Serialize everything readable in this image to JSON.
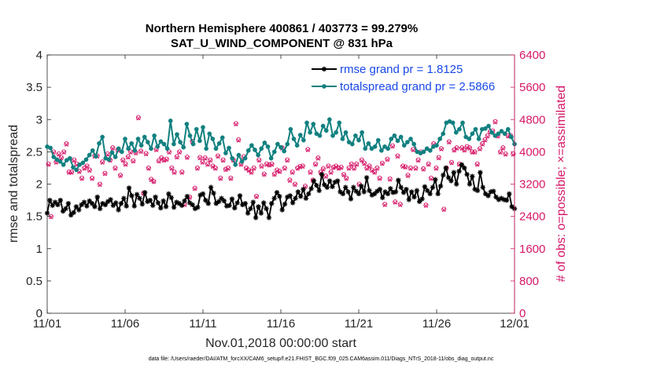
{
  "chart_data": {
    "type": "line",
    "title_line1": "Northern Hemisphere 400861 / 403773 = 99.279%",
    "title_line2": "SAT_U_WIND_COMPONENT @ 831 hPa",
    "xlabel": "Nov.01,2018 00:00:00 start",
    "ylabel_left": "rmse and totalspread",
    "ylabel_right": "# of obs: o=possible; ×=assimilated",
    "footnote": "data file: /Users/raeder/DAI/ATM_forcXX/CAM6_setup/f.e21.FHIST_BGC.f09_025.CAM6assim.011/Diags_NTrS_2018-11/obs_diag_output.nc",
    "xlim": [
      0,
      30
    ],
    "ylim_left": [
      0,
      4
    ],
    "ylim_right": [
      0,
      6400
    ],
    "x_ticks": [
      0,
      5,
      10,
      15,
      20,
      25,
      30
    ],
    "x_tick_labels": [
      "11/01",
      "11/06",
      "11/11",
      "11/16",
      "11/21",
      "11/26",
      "12/01"
    ],
    "y_left_ticks": [
      0,
      0.5,
      1,
      1.5,
      2,
      2.5,
      3,
      3.5,
      4
    ],
    "y_left_tick_labels": [
      "0",
      "0.5",
      "1",
      "1.5",
      "2",
      "2.5",
      "3",
      "3.5",
      "4"
    ],
    "y_right_ticks": [
      0,
      800,
      1600,
      2400,
      3200,
      4000,
      4800,
      5600,
      6400
    ],
    "y_right_tick_labels": [
      "0",
      "800",
      "1600",
      "2400",
      "3200",
      "4000",
      "4800",
      "5600",
      "6400"
    ],
    "legend": [
      {
        "label": "rmse grand pr = 1.8125",
        "color": "#000000"
      },
      {
        "label": "totalspread grand pr = 2.5866",
        "color": "#138080"
      }
    ],
    "series": [
      {
        "name": "rmse",
        "color": "#000000",
        "values": [
          1.55,
          1.75,
          1.67,
          1.72,
          1.68,
          1.75,
          1.58,
          1.62,
          1.7,
          1.52,
          1.56,
          1.65,
          1.6,
          1.68,
          1.72,
          1.66,
          1.74,
          1.7,
          1.65,
          1.8,
          1.62,
          1.7,
          1.68,
          1.73,
          1.76,
          1.67,
          1.71,
          1.6,
          1.7,
          1.78,
          1.66,
          1.94,
          1.82,
          1.66,
          1.84,
          1.78,
          1.69,
          1.87,
          1.73,
          1.75,
          1.67,
          1.8,
          1.71,
          1.63,
          1.74,
          1.65,
          1.85,
          1.79,
          1.64,
          1.72,
          1.7,
          1.67,
          1.74,
          1.81,
          1.71,
          1.68,
          1.62,
          1.64,
          1.83,
          1.85,
          1.75,
          1.7,
          1.95,
          1.86,
          1.7,
          1.73,
          1.78,
          1.74,
          1.66,
          1.67,
          1.77,
          1.63,
          1.71,
          1.82,
          1.68,
          1.7,
          1.55,
          1.62,
          1.72,
          1.48,
          1.65,
          1.55,
          1.71,
          1.62,
          1.48,
          1.7,
          1.78,
          1.87,
          1.81,
          1.6,
          1.69,
          1.8,
          1.82,
          1.71,
          1.78,
          1.88,
          1.81,
          1.92,
          1.78,
          1.85,
          1.93,
          2.05,
          1.98,
          1.9,
          2.15,
          1.99,
          1.95,
          2.05,
          1.96,
          2.03,
          2.05,
          1.88,
          1.85,
          1.95,
          1.88,
          1.77,
          1.95,
          1.89,
          1.85,
          1.97,
          1.88,
          2.1,
          1.9,
          1.83,
          1.85,
          1.89,
          1.92,
          1.79,
          1.88,
          1.85,
          1.93,
          1.87,
          1.88,
          2.06,
          1.95,
          1.87,
          1.92,
          1.76,
          1.88,
          1.8,
          1.9,
          1.73,
          1.77,
          1.96,
          1.9,
          1.85,
          1.95,
          2.07,
          1.85,
          1.97,
          2.14,
          2.25,
          2.1,
          2.05,
          2.18,
          2.0,
          2.2,
          2.3,
          2.25,
          2.15,
          2.0,
          2.12,
          1.92,
          1.9,
          2.18,
          1.95,
          1.85,
          1.82,
          1.88,
          1.89,
          1.8,
          1.76,
          1.78,
          1.76,
          1.75,
          1.85,
          1.65,
          1.62
        ]
      },
      {
        "name": "totalspread",
        "color": "#138080",
        "values": [
          2.58,
          2.56,
          2.42,
          2.38,
          2.35,
          2.3,
          2.37,
          2.4,
          2.26,
          2.22,
          2.3,
          2.33,
          2.38,
          2.45,
          2.52,
          2.43,
          2.63,
          2.73,
          2.4,
          2.38,
          2.49,
          2.42,
          2.55,
          2.5,
          2.7,
          2.55,
          2.63,
          2.52,
          2.7,
          2.6,
          2.73,
          2.65,
          2.55,
          2.75,
          2.58,
          2.66,
          2.62,
          2.55,
          2.98,
          2.62,
          2.77,
          2.65,
          2.57,
          2.93,
          2.75,
          2.62,
          2.85,
          2.67,
          2.88,
          2.55,
          2.78,
          2.7,
          2.55,
          2.63,
          2.72,
          2.48,
          2.56,
          2.4,
          2.3,
          2.45,
          2.35,
          2.4,
          2.52,
          2.6,
          2.53,
          2.45,
          2.55,
          2.64,
          2.58,
          2.4,
          2.5,
          2.62,
          2.57,
          2.51,
          2.62,
          2.85,
          2.7,
          2.6,
          2.76,
          2.68,
          2.95,
          2.8,
          2.93,
          2.78,
          2.75,
          2.9,
          2.83,
          3.0,
          2.75,
          2.8,
          2.95,
          2.7,
          2.8,
          2.65,
          2.62,
          2.75,
          2.68,
          2.8,
          2.55,
          2.63,
          2.55,
          2.58,
          2.68,
          2.52,
          2.58,
          2.55,
          2.7,
          2.75,
          2.67,
          2.73,
          2.6,
          2.65,
          2.7,
          2.62,
          2.5,
          2.48,
          2.5,
          2.55,
          2.52,
          2.58,
          2.6,
          2.7,
          2.78,
          2.95,
          2.97,
          2.95,
          2.8,
          2.85,
          2.95,
          2.73,
          2.7,
          2.78,
          2.85,
          2.7,
          2.85,
          2.86,
          2.9,
          2.8,
          2.75,
          2.78,
          2.82,
          2.78,
          2.85,
          2.73,
          2.62
        ]
      }
    ],
    "scatter_counts": [
      {
        "name": "possible",
        "marker": "o",
        "color": "#d61868",
        "values": [
          3700,
          2400,
          4000,
          3750,
          3950,
          3860,
          4000,
          4200,
          3500,
          3500,
          3800,
          3700,
          3520,
          3350,
          3600,
          3650,
          3550,
          3350,
          3900,
          3900,
          3200,
          3750,
          3470,
          3950,
          3800,
          4100,
          3600,
          4050,
          3420,
          3800,
          3700,
          3880,
          4000,
          3780,
          3980,
          4850,
          4020,
          2980,
          3960,
          3600,
          3320,
          3270,
          4060,
          3780,
          3850,
          3800,
          3820,
          4000,
          3600,
          3500,
          3880,
          4000,
          3500,
          2700,
          3870,
          2880,
          4260,
          3100,
          3600,
          3860,
          3750,
          3850,
          3700,
          3800,
          3650,
          3600,
          3900,
          3350,
          3800,
          3570,
          3600,
          3350,
          3800,
          4700,
          4300,
          3700,
          3880,
          3600,
          3550,
          3500,
          3600,
          2900,
          3800,
          3650,
          3450,
          3700,
          3680,
          3700,
          3450,
          3550,
          3520,
          4100,
          3600,
          3800,
          3300,
          3500,
          3200,
          3600,
          3640,
          3650,
          3150,
          4060,
          3500,
          3300,
          3700,
          3850,
          3500,
          3580,
          3400,
          3650,
          3500,
          3620,
          3650,
          3600,
          3620,
          3440,
          3350,
          3600,
          3700,
          3600,
          3700,
          3200,
          3800,
          3720,
          3600,
          3650,
          3550,
          3500,
          3600,
          3350,
          3720,
          2700,
          3820,
          3330,
          4150,
          2760,
          3900,
          2700,
          3650,
          3630,
          3420,
          3600,
          4060,
          3600,
          3800,
          4000,
          3580,
          2680,
          3700,
          3350,
          4200,
          3600,
          3860,
          4080,
          2580,
          3600,
          4250,
          3740,
          4050,
          4100,
          3700,
          4100,
          4050,
          4130,
          4100,
          4000,
          4000,
          3700,
          4080,
          4200,
          4300,
          4400,
          4500,
          4520,
          4750,
          4400,
          4000,
          4100,
          3950,
          4400,
          4400,
          3950
        ]
      },
      {
        "name": "assimilated",
        "marker": "x",
        "color": "#d61868",
        "values": [
          3680,
          2380,
          3980,
          3730,
          3930,
          3840,
          3980,
          4180,
          3480,
          3480,
          3780,
          3680,
          3500,
          3330,
          3580,
          3630,
          3530,
          3330,
          3880,
          3880,
          3180,
          3730,
          3450,
          3930,
          3780,
          4080,
          3580,
          4030,
          3400,
          3780,
          3680,
          3860,
          3980,
          3760,
          3960,
          4830,
          4000,
          2960,
          3940,
          3580,
          3300,
          3250,
          4040,
          3760,
          3830,
          3780,
          3800,
          3980,
          3580,
          3480,
          3860,
          3980,
          3480,
          2680,
          3850,
          2860,
          4240,
          3080,
          3580,
          3840,
          3730,
          3830,
          3680,
          3780,
          3630,
          3580,
          3880,
          3330,
          3780,
          3550,
          3580,
          3330,
          3780,
          4680,
          4280,
          3680,
          3860,
          3580,
          3530,
          3480,
          3580,
          2880,
          3780,
          3630,
          3430,
          3680,
          3660,
          3680,
          3430,
          3530,
          3500,
          4080,
          3580,
          3780,
          3280,
          3480,
          3180,
          3580,
          3620,
          3630,
          3130,
          4040,
          3480,
          3280,
          3680,
          3830,
          3480,
          3560,
          3380,
          3630,
          3480,
          3600,
          3630,
          3580,
          3600,
          3420,
          3330,
          3580,
          3680,
          3580,
          3680,
          3180,
          3780,
          3700,
          3580,
          3630,
          3530,
          3480,
          3580,
          3330,
          3700,
          2680,
          3800,
          3310,
          4130,
          2740,
          3880,
          2680,
          3630,
          3610,
          3400,
          3580,
          4040,
          3580,
          3780,
          3980,
          3560,
          2660,
          3680,
          3330,
          4180,
          3580,
          3840,
          4060,
          2560,
          3580,
          4230,
          3720,
          4030,
          4080,
          3680,
          4080,
          4030,
          4110,
          4080,
          3980,
          3980,
          3680,
          4060,
          4180,
          4280,
          4380,
          4480,
          4500,
          4730,
          4380,
          3980,
          4080,
          3930,
          4380,
          4380,
          3930
        ]
      }
    ]
  }
}
